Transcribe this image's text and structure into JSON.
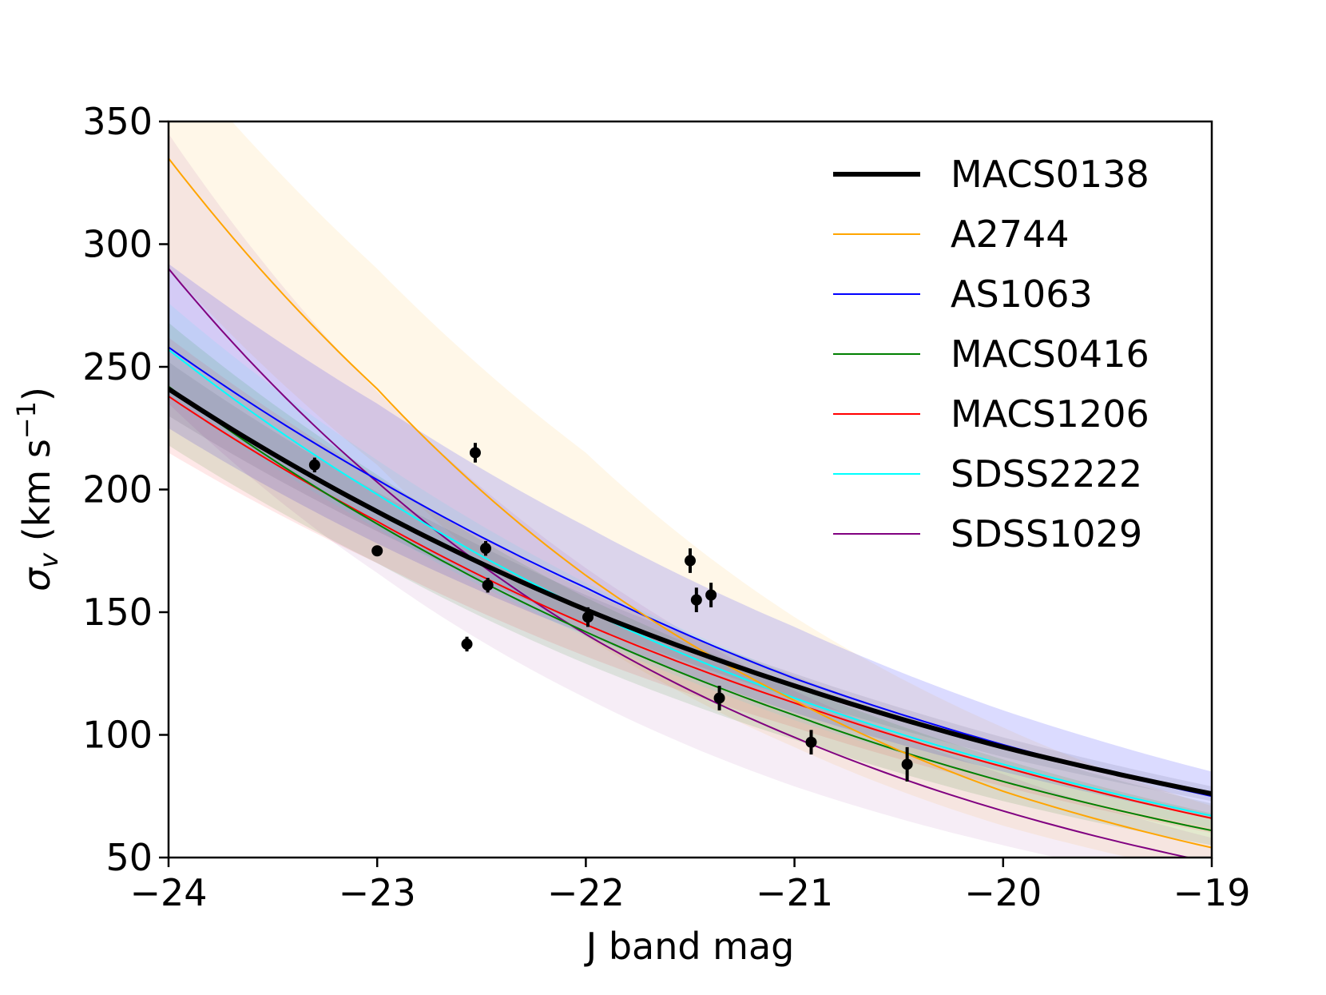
{
  "chart_data": {
    "type": "line",
    "xlabel": "J band mag",
    "ylabel": "σv (km s−1)",
    "ylabel_parts": {
      "sigma": "σ",
      "sub": "v",
      "open": " (km s",
      "sup": "−1",
      "close": ")"
    },
    "xlim": [
      -24,
      -19
    ],
    "ylim": [
      50,
      350
    ],
    "x_ticks": [
      -24,
      -23,
      -22,
      -21,
      -20,
      -19
    ],
    "x_tick_labels": [
      "−24",
      "−23",
      "−22",
      "−21",
      "−20",
      "−19"
    ],
    "y_ticks": [
      50,
      100,
      150,
      200,
      250,
      300,
      350
    ],
    "y_tick_labels": [
      "50",
      "100",
      "150",
      "200",
      "250",
      "300",
      "350"
    ],
    "grid": false,
    "legend_position": "top-right",
    "series": [
      {
        "name": "MACS0138",
        "color": "#000000",
        "width": 6,
        "points": [
          [
            -24,
            241
          ],
          [
            -23,
            191
          ],
          [
            -22,
            151
          ],
          [
            -21,
            120
          ],
          [
            -20,
            95
          ],
          [
            -19,
            76
          ]
        ],
        "band": [
          [
            -24,
            230,
            252
          ],
          [
            -23,
            183,
            199
          ],
          [
            -22,
            145,
            157
          ],
          [
            -21,
            115,
            125
          ],
          [
            -20,
            91,
            99
          ],
          [
            -19,
            73,
            79
          ]
        ],
        "band_opacity": 0.08
      },
      {
        "name": "A2744",
        "color": "#ffa500",
        "width": 2,
        "points": [
          [
            -24,
            335
          ],
          [
            -23,
            241
          ],
          [
            -22,
            165
          ],
          [
            -21,
            114
          ],
          [
            -20,
            77
          ],
          [
            -19,
            54
          ]
        ],
        "band": [
          [
            -24,
            290,
            380
          ],
          [
            -23,
            210,
            290
          ],
          [
            -22,
            140,
            215
          ],
          [
            -21,
            95,
            148
          ],
          [
            -20,
            63,
            103
          ],
          [
            -19,
            43,
            71
          ]
        ],
        "band_opacity": 0.09
      },
      {
        "name": "AS1063",
        "color": "#0000ff",
        "width": 2,
        "points": [
          [
            -24,
            258
          ],
          [
            -23,
            204
          ],
          [
            -22,
            160
          ],
          [
            -21,
            123
          ],
          [
            -20,
            96
          ],
          [
            -19,
            75
          ]
        ],
        "band": [
          [
            -24,
            225,
            292
          ],
          [
            -23,
            178,
            235
          ],
          [
            -22,
            141,
            185
          ],
          [
            -21,
            109,
            144
          ],
          [
            -20,
            85,
            110
          ],
          [
            -19,
            66,
            85
          ]
        ],
        "band_opacity": 0.14
      },
      {
        "name": "MACS0416",
        "color": "#008000",
        "width": 2,
        "points": [
          [
            -24,
            242
          ],
          [
            -23,
            186
          ],
          [
            -22,
            142
          ],
          [
            -21,
            108
          ],
          [
            -20,
            81
          ],
          [
            -19,
            61
          ]
        ],
        "band": [
          [
            -24,
            218,
            268
          ],
          [
            -23,
            170,
            206
          ],
          [
            -22,
            129,
            156
          ],
          [
            -21,
            98,
            120
          ],
          [
            -20,
            73,
            90
          ],
          [
            -19,
            55,
            68
          ]
        ],
        "band_opacity": 0.11
      },
      {
        "name": "MACS1206",
        "color": "#ff0000",
        "width": 2,
        "points": [
          [
            -24,
            238
          ],
          [
            -23,
            187
          ],
          [
            -22,
            145
          ],
          [
            -21,
            113
          ],
          [
            -20,
            87
          ],
          [
            -19,
            66
          ]
        ],
        "band": [
          [
            -24,
            215,
            262
          ],
          [
            -23,
            170,
            205
          ],
          [
            -22,
            132,
            159
          ],
          [
            -21,
            103,
            124
          ],
          [
            -20,
            79,
            95
          ],
          [
            -19,
            60,
            72
          ]
        ],
        "band_opacity": 0.09
      },
      {
        "name": "SDSS2222",
        "color": "#00ffff",
        "width": 2,
        "points": [
          [
            -24,
            257
          ],
          [
            -23,
            198
          ],
          [
            -22,
            151
          ],
          [
            -21,
            115
          ],
          [
            -20,
            88
          ],
          [
            -19,
            67
          ]
        ],
        "band": [
          [
            -24,
            238,
            276
          ],
          [
            -23,
            184,
            212
          ],
          [
            -22,
            140,
            162
          ],
          [
            -21,
            106,
            124
          ],
          [
            -20,
            81,
            95
          ],
          [
            -19,
            62,
            72
          ]
        ],
        "band_opacity": 0.09
      },
      {
        "name": "SDSS1029",
        "color": "#800080",
        "width": 2,
        "points": [
          [
            -24,
            290
          ],
          [
            -23,
            203
          ],
          [
            -22,
            141
          ],
          [
            -21,
            99
          ],
          [
            -20,
            69
          ],
          [
            -19,
            48
          ]
        ],
        "band": [
          [
            -24,
            235,
            345
          ],
          [
            -23,
            166,
            240
          ],
          [
            -22,
            115,
            168
          ],
          [
            -21,
            79,
            118
          ],
          [
            -20,
            55,
            84
          ],
          [
            -19,
            38,
            58
          ]
        ],
        "band_opacity": 0.07
      }
    ],
    "data_points": [
      {
        "x": -23.3,
        "y": 210,
        "err": 3
      },
      {
        "x": -23.0,
        "y": 175,
        "err": 2
      },
      {
        "x": -22.57,
        "y": 137,
        "err": 3
      },
      {
        "x": -22.53,
        "y": 215,
        "err": 4
      },
      {
        "x": -22.48,
        "y": 176,
        "err": 3
      },
      {
        "x": -22.47,
        "y": 161,
        "err": 3
      },
      {
        "x": -21.99,
        "y": 148,
        "err": 4
      },
      {
        "x": -21.5,
        "y": 171,
        "err": 5
      },
      {
        "x": -21.47,
        "y": 155,
        "err": 5
      },
      {
        "x": -21.4,
        "y": 157,
        "err": 5
      },
      {
        "x": -21.36,
        "y": 115,
        "err": 5
      },
      {
        "x": -20.92,
        "y": 97,
        "err": 5
      },
      {
        "x": -20.46,
        "y": 88,
        "err": 7
      }
    ]
  }
}
